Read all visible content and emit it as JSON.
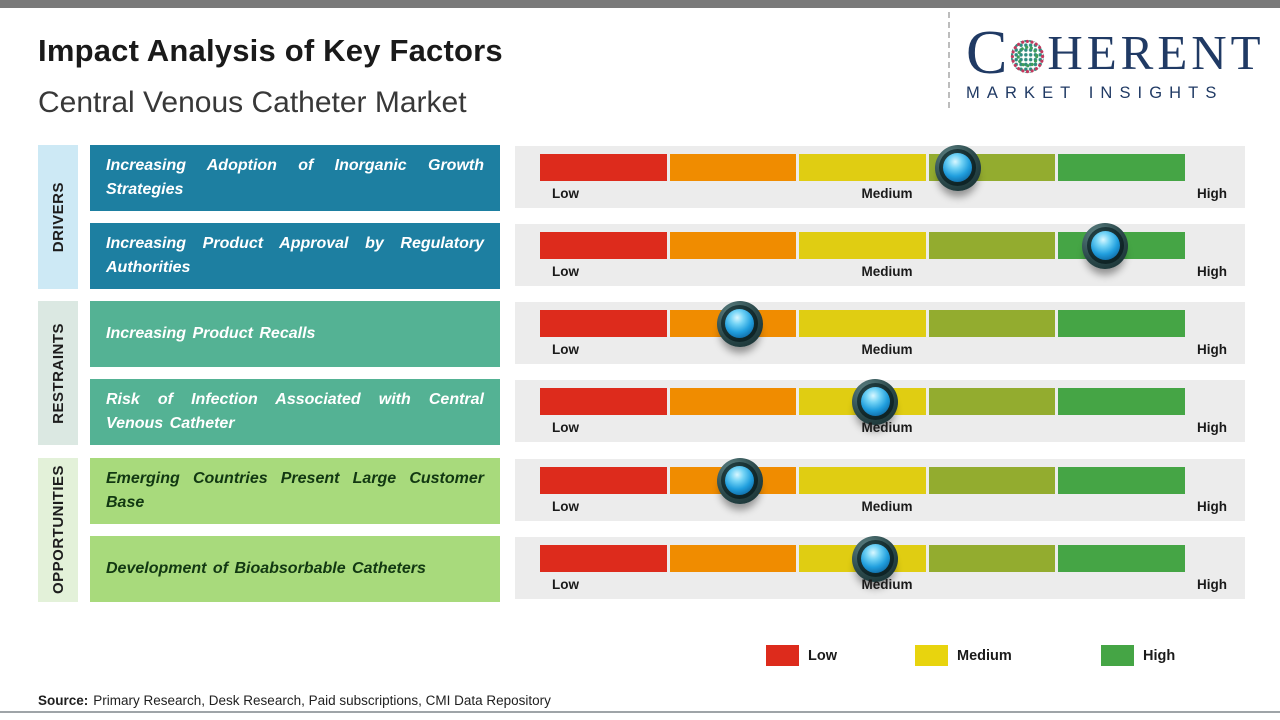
{
  "page": {
    "background": "#ffffff",
    "top_bar_color": "#7a7a7a",
    "bottom_rule_color": "#9fa4a8"
  },
  "header": {
    "title": "Impact Analysis of Key Factors",
    "subtitle": "Central Venous Catheter Market"
  },
  "logo": {
    "brand_prefix": "C",
    "brand_suffix": "HERENT",
    "tagline": "MARKET INSIGHTS",
    "color": "#203a64",
    "globe_colors": [
      "#2e8b7f",
      "#3f9d5a",
      "#c23a5f"
    ]
  },
  "source": {
    "label": "Source:",
    "text": "Primary Research, Desk Research, Paid subscriptions, CMI Data Repository"
  },
  "chart_data": {
    "type": "impact-scale-bar",
    "title": "Impact Analysis of Key Factors",
    "subtitle": "Central Venous Catheter Market",
    "scale_labels": [
      "Low",
      "Medium",
      "High"
    ],
    "scale_range": [
      0,
      1
    ],
    "grid": false,
    "segment_colors": [
      "#dd2b1c",
      "#f08c00",
      "#e0cd12",
      "#93ac2f",
      "#45a545"
    ],
    "marker_colors": {
      "ring": "#24413f",
      "sphere": "#2aa7e0"
    },
    "groups": [
      {
        "label": "DRIVERS",
        "strip_color": "#cde9f5",
        "box_color": "#1d7fa1",
        "text_color": "#ffffff"
      },
      {
        "label": "RESTRAINTS",
        "strip_color": "#dbe8e2",
        "box_color": "#54b294",
        "text_color": "#ffffff"
      },
      {
        "label": "OPPORTUNITIES",
        "strip_color": "#e3f1d9",
        "box_color": "#a8da7c",
        "text_color": "#123812"
      }
    ],
    "rows": [
      {
        "group": "DRIVERS",
        "factor": "Increasing Adoption of Inorganic Growth Strategies",
        "impact_position": 0.648,
        "impact_level": "Medium-High"
      },
      {
        "group": "DRIVERS",
        "factor": "Increasing Product Approval by Regulatory Authorities",
        "impact_position": 0.876,
        "impact_level": "High"
      },
      {
        "group": "RESTRAINTS",
        "factor": "Increasing Product Recalls",
        "impact_position": 0.31,
        "impact_level": "Low-Medium"
      },
      {
        "group": "RESTRAINTS",
        "factor": "Risk of Infection Associated with Central Venous Catheter",
        "impact_position": 0.52,
        "impact_level": "Medium"
      },
      {
        "group": "OPPORTUNITIES",
        "factor": "Emerging Countries Present Large Customer Base",
        "impact_position": 0.31,
        "impact_level": "Low-Medium"
      },
      {
        "group": "OPPORTUNITIES",
        "factor": "Development of Bioabsorbable Catheters",
        "impact_position": 0.52,
        "impact_level": "Medium"
      }
    ],
    "legend": [
      {
        "label": "Low",
        "color": "#dd2b1c"
      },
      {
        "label": "Medium",
        "color": "#e8d40e"
      },
      {
        "label": "High",
        "color": "#45a545"
      }
    ],
    "legend_position": "bottom-right"
  }
}
